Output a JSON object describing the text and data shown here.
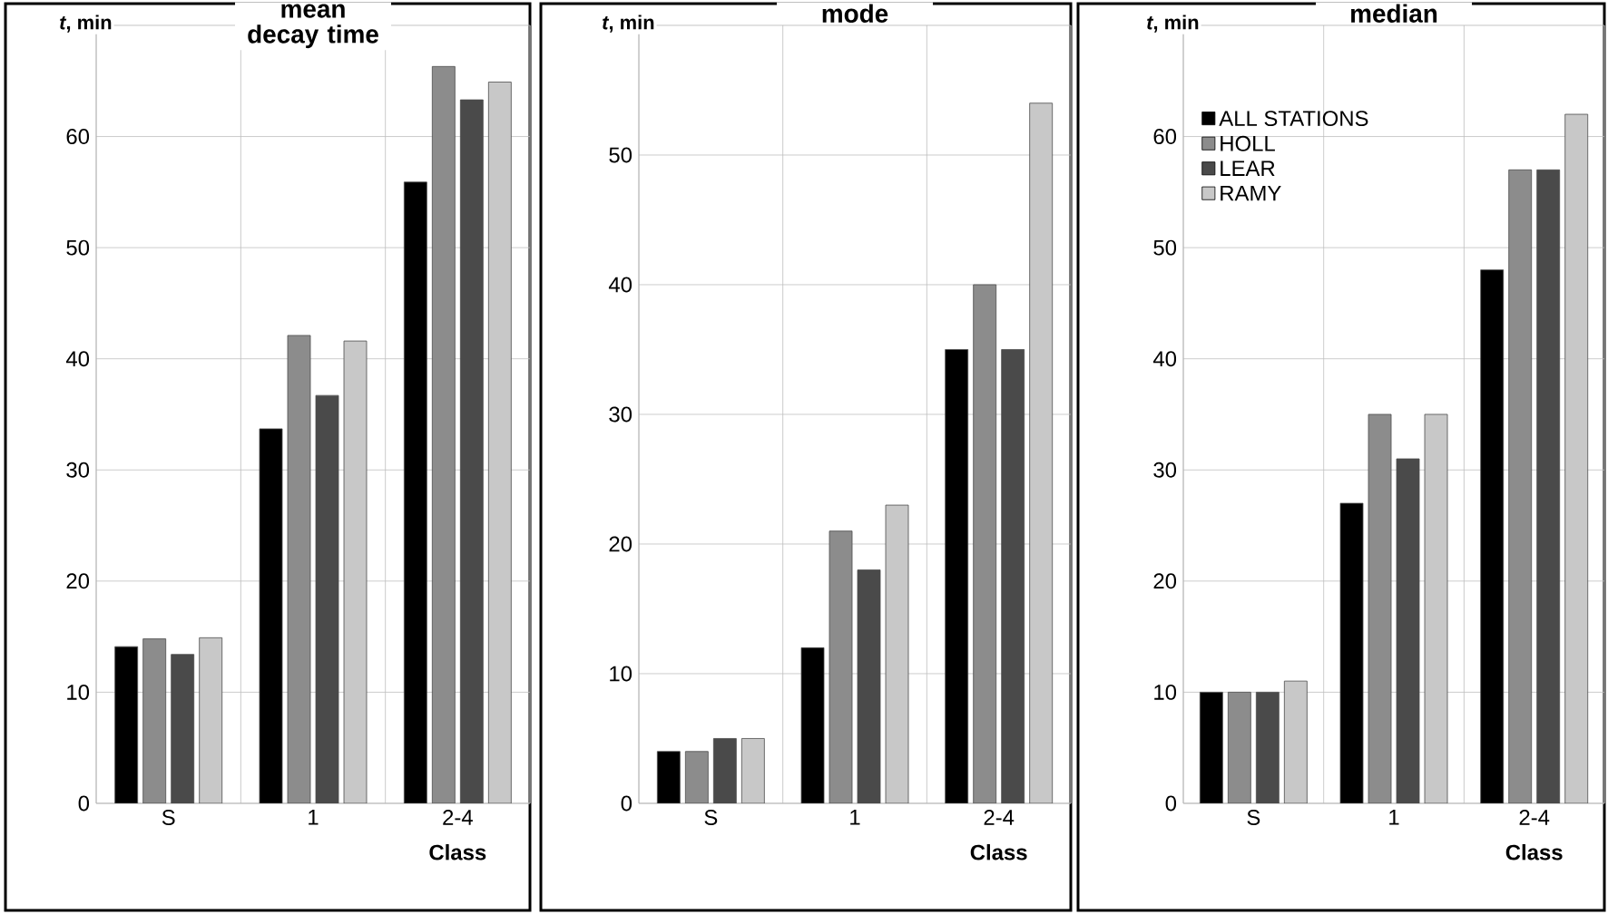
{
  "chart_data": [
    {
      "type": "bar",
      "title": "mean decay time",
      "ylabel": "*t*, min",
      "xlabel": "Class",
      "categories": [
        "S",
        "1",
        "2-4"
      ],
      "ylim": [
        0,
        70
      ],
      "yticks": [
        0,
        10,
        20,
        30,
        40,
        50,
        60
      ],
      "grid": true,
      "series": [
        {
          "color": "#000000",
          "values": [
            14.1,
            33.7,
            55.9
          ]
        },
        {
          "color": "#8c8c8c",
          "values": [
            14.8,
            42.1,
            66.3
          ]
        },
        {
          "color": "#4a4a4a",
          "values": [
            13.4,
            36.7,
            63.3
          ]
        },
        {
          "color": "#c8c8c8",
          "values": [
            14.9,
            41.6,
            64.9
          ]
        }
      ]
    },
    {
      "type": "bar",
      "title": "mode",
      "ylabel": "*t*, min",
      "xlabel": "Class",
      "categories": [
        "S",
        "1",
        "2-4"
      ],
      "ylim": [
        0,
        60
      ],
      "yticks": [
        0,
        10,
        20,
        30,
        40,
        50
      ],
      "grid": true,
      "series": [
        {
          "color": "#000000",
          "values": [
            4,
            12,
            35
          ]
        },
        {
          "color": "#8c8c8c",
          "values": [
            4,
            21,
            40
          ]
        },
        {
          "color": "#4a4a4a",
          "values": [
            5,
            18,
            35
          ]
        },
        {
          "color": "#c8c8c8",
          "values": [
            5,
            23,
            54
          ]
        }
      ]
    },
    {
      "type": "bar",
      "title": "median",
      "ylabel": "*t*, min",
      "xlabel": "Class",
      "categories": [
        "S",
        "1",
        "2-4"
      ],
      "ylim": [
        0,
        70
      ],
      "yticks": [
        0,
        10,
        20,
        30,
        40,
        50,
        60
      ],
      "grid": true,
      "legend": "top left",
      "series": [
        {
          "name": "ALL STATIONS",
          "color": "#000000",
          "values": [
            10,
            27,
            48
          ]
        },
        {
          "name": "HOLL",
          "color": "#8c8c8c",
          "values": [
            10,
            35,
            57
          ]
        },
        {
          "name": "LEAR",
          "color": "#4a4a4a",
          "values": [
            10,
            31,
            57
          ]
        },
        {
          "name": "RAMY",
          "color": "#c8c8c8",
          "values": [
            11,
            35,
            62
          ]
        }
      ]
    }
  ]
}
